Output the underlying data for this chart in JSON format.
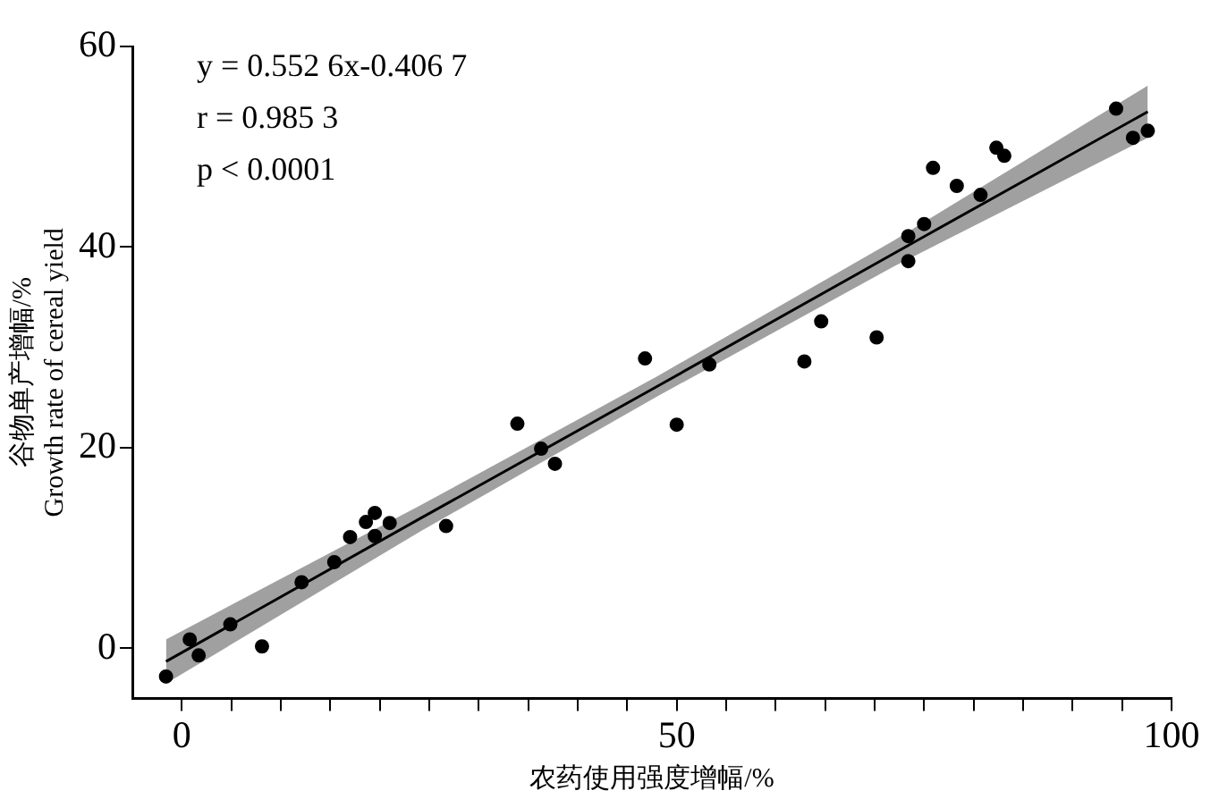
{
  "chart_data": {
    "type": "scatter",
    "xlabel": "农药使用强度增幅/%",
    "ylabel": "谷物单产增幅/%\nGrowth rate of cereal yield",
    "annotations": [
      "y = 0.552 6x-0.406 7",
      "r = 0.985 3",
      "p < 0.0001"
    ],
    "x": [
      -1.6,
      0.8,
      1.7,
      4.9,
      8.1,
      12.1,
      15.4,
      17.0,
      18.6,
      19.5,
      19.5,
      21.0,
      26.7,
      33.9,
      36.3,
      37.7,
      46.8,
      50.0,
      53.3,
      62.9,
      64.6,
      70.2,
      73.4,
      73.4,
      75.0,
      75.9,
      78.3,
      80.7,
      82.3,
      83.1,
      94.4,
      96.1,
      97.6
    ],
    "series": [
      {
        "color": "#000000",
        "marker": "circle",
        "values": [
          -2.8,
          0.9,
          -0.7,
          2.4,
          0.2,
          6.6,
          8.6,
          11.1,
          12.6,
          13.5,
          11.2,
          12.5,
          12.2,
          22.4,
          19.9,
          18.4,
          28.9,
          22.3,
          28.3,
          28.6,
          32.6,
          31.0,
          41.1,
          38.6,
          42.3,
          47.9,
          46.1,
          45.2,
          49.9,
          49.1,
          53.8,
          50.9,
          51.6
        ]
      },
      {
        "type": "line",
        "color": "#000000",
        "x": [
          -1.6,
          24,
          48,
          72,
          97.6
        ],
        "values": [
          -1.3,
          12.9,
          26.1,
          39.4,
          53.5
        ],
        "lower": [
          -3.5,
          11.6,
          25.1,
          38.1,
          50.9
        ],
        "upper": [
          0.9,
          14.2,
          27.1,
          40.7,
          56.1
        ]
      }
    ],
    "xlim": [
      -5,
      100
    ],
    "xticks": [
      0,
      {
        "value": 5,
        "label": null
      },
      {
        "value": 10,
        "label": null
      },
      {
        "value": 15,
        "label": null
      },
      {
        "value": 20,
        "label": null
      },
      {
        "value": 25,
        "label": null
      },
      {
        "value": 30,
        "label": null
      },
      {
        "value": 35,
        "label": null
      },
      {
        "value": 40,
        "label": null
      },
      {
        "value": 45,
        "label": null
      },
      50,
      {
        "value": 55,
        "label": null
      },
      {
        "value": 60,
        "label": null
      },
      {
        "value": 65,
        "label": null
      },
      {
        "value": 70,
        "label": null
      },
      {
        "value": 75,
        "label": null
      },
      {
        "value": 80,
        "label": null
      },
      {
        "value": 85,
        "label": null
      },
      {
        "value": 90,
        "label": null
      },
      {
        "value": 95,
        "label": null
      },
      100
    ],
    "ylim": [
      -5,
      60
    ],
    "yticks": [
      0,
      20,
      40,
      60
    ],
    "grid": false,
    "legend": false
  }
}
